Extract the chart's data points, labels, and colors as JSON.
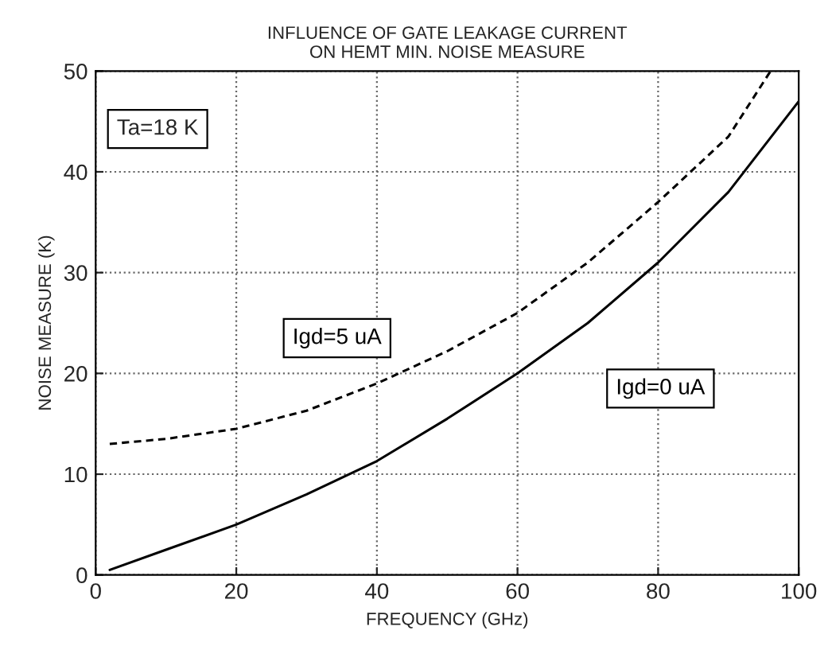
{
  "chart_data": {
    "type": "line",
    "title": "INFLUENCE OF GATE LEAKAGE CURRENT\nON HEMT MIN. NOISE MEASURE",
    "xlabel": "FREQUENCY (GHz)",
    "ylabel": "NOISE MEASURE (K)",
    "x": [
      2,
      10,
      20,
      30,
      40,
      50,
      60,
      70,
      80,
      90,
      100
    ],
    "series": [
      {
        "name": "Igd=0 uA",
        "color": "#000000",
        "line_style": "solid",
        "values": [
          0.5,
          2.5,
          5,
          8,
          11.3,
          15.5,
          20,
          25,
          31,
          38,
          47
        ]
      },
      {
        "name": "Igd=5 uA",
        "color": "#000000",
        "line_style": "dashed",
        "x": [
          2,
          10,
          20,
          30,
          40,
          50,
          60,
          70,
          80,
          90,
          96
        ],
        "values": [
          13,
          13.5,
          14.5,
          16.3,
          19,
          22.2,
          26,
          31,
          37,
          43.5,
          50
        ]
      }
    ],
    "annotations": [
      "Ta=18 K"
    ],
    "xlim": [
      0,
      100
    ],
    "xticks": [
      0,
      20,
      40,
      60,
      80,
      100
    ],
    "ylim": [
      0,
      50
    ],
    "yticks": [
      0,
      10,
      20,
      30,
      40,
      50
    ],
    "grid": true,
    "legend": false
  }
}
